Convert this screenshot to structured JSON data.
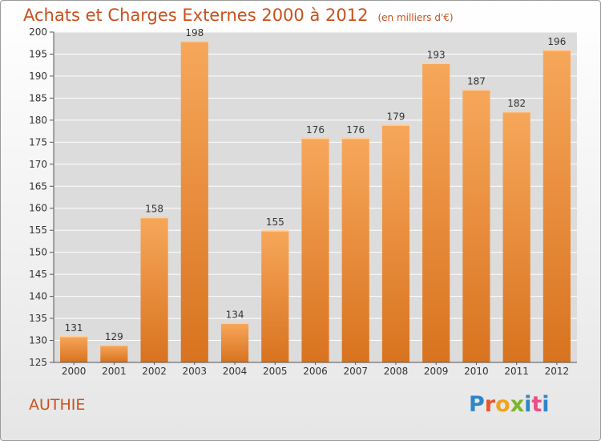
{
  "header": {
    "title": "Achats et Charges Externes 2000 à 2012",
    "subtitle": "(en milliers d'€)"
  },
  "footer": {
    "place": "AUTHIE",
    "logo": [
      "P",
      "r",
      "o",
      "x",
      "i",
      "t",
      "i"
    ]
  },
  "colors": {
    "bar_top": "#f7a75a",
    "bar_bottom": "#d8731f",
    "title": "#c8511d",
    "grid": "#ffffff"
  },
  "chart_data": {
    "type": "bar",
    "title": "Achats et Charges Externes 2000 à 2012",
    "subtitle": "(en milliers d'€)",
    "categories": [
      "2000",
      "2001",
      "2002",
      "2003",
      "2004",
      "2005",
      "2006",
      "2007",
      "2008",
      "2009",
      "2010",
      "2011",
      "2012"
    ],
    "values": [
      131,
      129,
      158,
      198,
      134,
      155,
      176,
      176,
      179,
      193,
      187,
      182,
      196
    ],
    "ylim": [
      125,
      200
    ],
    "yticks": [
      125,
      130,
      135,
      140,
      145,
      150,
      155,
      160,
      165,
      170,
      175,
      180,
      185,
      190,
      195,
      200
    ],
    "grid": true,
    "legend": "none",
    "xlabel": "",
    "ylabel": ""
  }
}
